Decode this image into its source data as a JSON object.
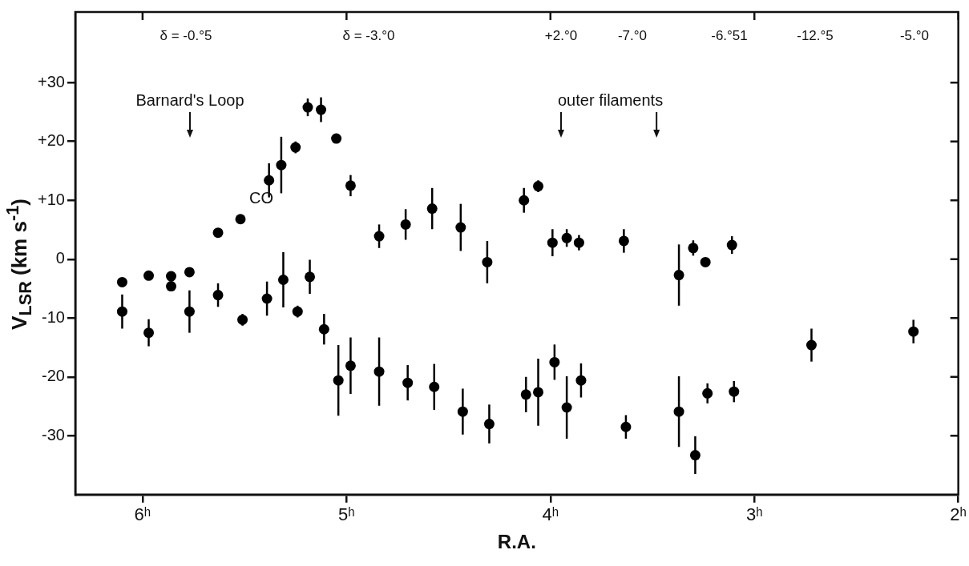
{
  "chart_data": {
    "type": "scatter",
    "xlabel": "R.A.",
    "ylabel": "V$_{LSR}$ (km s$^{-1}$)",
    "xlim": [
      6.33,
      2
    ],
    "ylim": [
      -40,
      42
    ],
    "xticks": [
      {
        "value": 6,
        "label": "6ʰ"
      },
      {
        "value": 5,
        "label": "5ʰ"
      },
      {
        "value": 4,
        "label": "4ʰ"
      },
      {
        "value": 3,
        "label": "3ʰ"
      },
      {
        "value": 2,
        "label": "2ʰ"
      }
    ],
    "yticks": [
      {
        "value": 30,
        "label": "+30"
      },
      {
        "value": 20,
        "label": "+20"
      },
      {
        "value": 10,
        "label": "+10"
      },
      0,
      -10,
      -20,
      -30
    ],
    "grid": false,
    "legend": false,
    "marker": "circle",
    "series": [
      {
        "color": "#000000",
        "x": [
          5.19,
          5.125,
          5.05,
          5.25,
          5.32,
          5.38,
          4.98,
          5.52,
          5.63,
          4.84,
          6.1,
          5.97,
          5.86,
          5.86,
          5.77,
          6.1,
          5.97,
          5.77,
          5.63,
          5.51,
          5.39,
          5.31,
          5.24,
          5.18,
          5.11,
          5.04,
          4.98,
          4.84,
          4.71,
          4.58,
          4.44,
          4.31,
          4.13,
          4.06,
          3.99,
          3.92,
          3.86,
          3.64,
          3.3,
          3.24,
          3.11,
          3.37,
          4.7,
          4.57,
          4.43,
          4.3,
          4.12,
          4.06,
          3.98,
          3.92,
          3.85,
          3.63,
          3.37,
          3.29,
          3.23,
          3.1,
          2.72,
          2.22
        ],
        "values": [
          25.8,
          25.4,
          20.5,
          19.0,
          16.0,
          13.4,
          12.5,
          6.8,
          4.5,
          3.9,
          -3.9,
          -2.8,
          -2.9,
          -4.6,
          -2.2,
          -8.9,
          -12.5,
          -8.9,
          -6.1,
          -10.3,
          -6.7,
          -3.5,
          -8.9,
          -3.0,
          -11.9,
          -20.6,
          -18.1,
          -19.1,
          5.9,
          8.6,
          5.4,
          -0.5,
          10.0,
          12.4,
          2.8,
          3.6,
          2.8,
          3.1,
          1.9,
          -0.5,
          2.4,
          -2.7,
          -21.0,
          -21.7,
          -25.9,
          -28.0,
          -23.0,
          -22.6,
          -17.5,
          -25.2,
          -20.6,
          -28.5,
          -25.9,
          -33.3,
          -22.8,
          -22.5,
          -14.6,
          -12.3
        ],
        "errors": [
          1.5,
          2.1,
          0.8,
          1,
          4.8,
          2.9,
          1.8,
          null,
          null,
          2,
          null,
          null,
          null,
          null,
          null,
          2.9,
          2.3,
          3.6,
          2,
          1,
          2.9,
          4.7,
          1,
          2.9,
          2.6,
          6,
          4.8,
          5.8,
          2.6,
          3.5,
          4,
          3.6,
          2.1,
          1,
          2.3,
          1.5,
          1.3,
          2,
          1.3,
          0.7,
          1.5,
          5.2,
          3,
          3.9,
          3.9,
          3.3,
          3,
          5.7,
          3,
          5.3,
          2.9,
          2,
          6,
          3.2,
          1.7,
          1.8,
          2.8,
          2
        ]
      }
    ],
    "annotations": [
      "Barnard's Loop",
      "outer filaments",
      "CO",
      "δ = -0.°5",
      "δ = -3.°0",
      "+2.°0",
      "-7.°0",
      "-6.°51",
      "-12.°5",
      "-5.°0"
    ]
  }
}
